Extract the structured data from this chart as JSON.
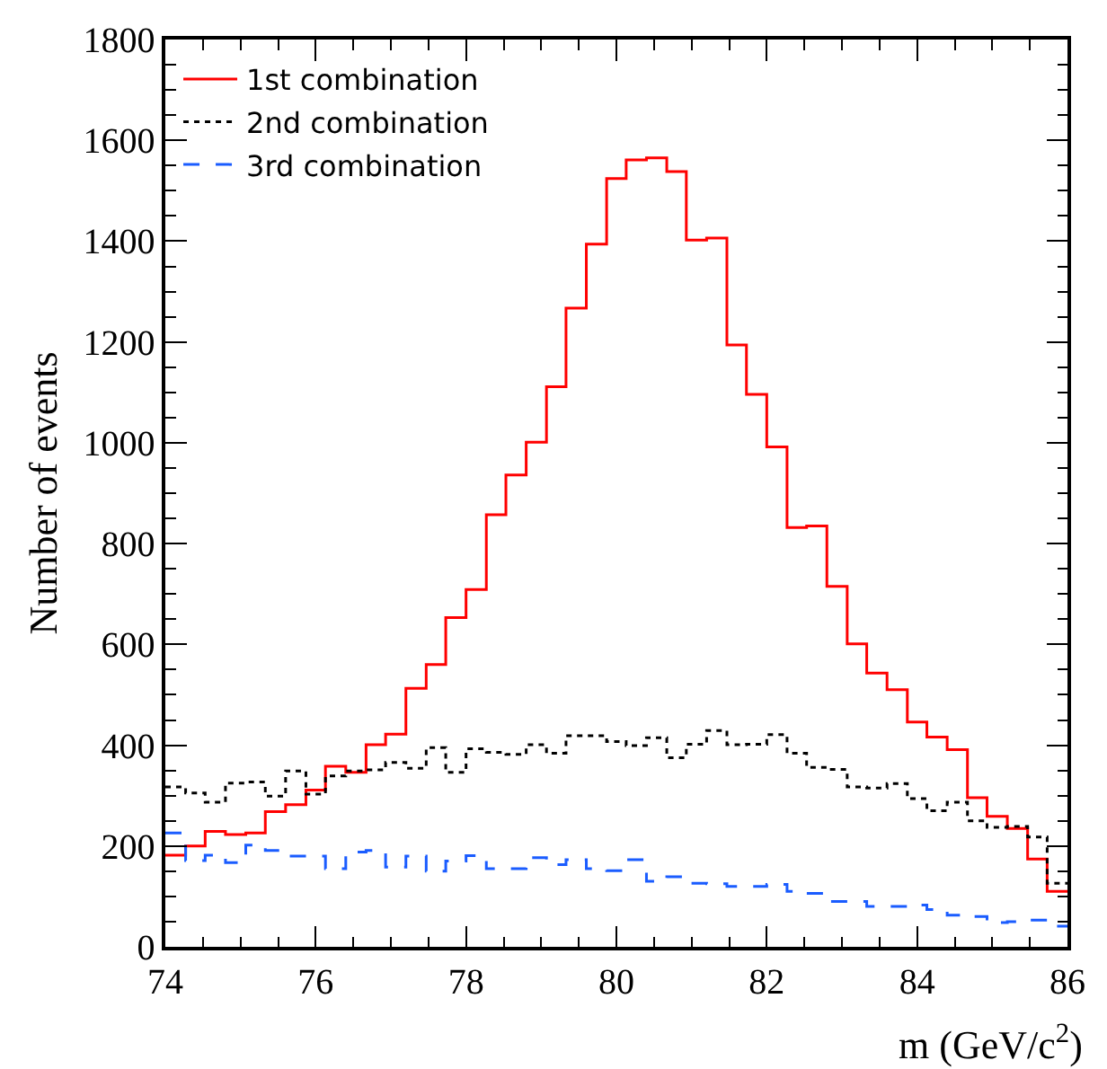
{
  "chart_data": {
    "type": "histogram",
    "xlabel": "m (GeV/c$^{2}$)",
    "ylabel": "Number of events",
    "bins": [
      74,
      74.27,
      74.53,
      74.8,
      75.07,
      75.33,
      75.6,
      75.87,
      76.13,
      76.4,
      76.67,
      76.93,
      77.2,
      77.47,
      77.73,
      78,
      78.27,
      78.53,
      78.8,
      79.07,
      79.33,
      79.6,
      79.87,
      80.13,
      80.4,
      80.67,
      80.93,
      81.2,
      81.47,
      81.73,
      82,
      82.27,
      82.53,
      82.8,
      83.07,
      83.33,
      83.6,
      83.87,
      84.13,
      84.4,
      84.67,
      84.93,
      85.2,
      85.47,
      85.73,
      86
    ],
    "series": [
      {
        "name": "1st combination",
        "color": "#ff0000",
        "line_style": "solid",
        "values": [
          182,
          200,
          229,
          223,
          226,
          268,
          282,
          311,
          358,
          346,
          401,
          422,
          513,
          560,
          653,
          709,
          857,
          936,
          1001,
          1111,
          1267,
          1394,
          1524,
          1561,
          1565,
          1538,
          1402,
          1406,
          1194,
          1096,
          992,
          832,
          835,
          715,
          601,
          543,
          510,
          446,
          416,
          391,
          296,
          259,
          235,
          174,
          110
        ]
      },
      {
        "name": "2nd combination",
        "color": "#000000",
        "line_style": "dotted",
        "values": [
          317,
          305,
          287,
          325,
          327,
          299,
          349,
          303,
          339,
          349,
          351,
          366,
          354,
          395,
          346,
          393,
          386,
          382,
          401,
          384,
          419,
          419,
          407,
          399,
          415,
          375,
          402,
          429,
          401,
          402,
          421,
          384,
          356,
          352,
          317,
          315,
          324,
          294,
          270,
          287,
          250,
          237,
          239,
          218,
          126
        ]
      },
      {
        "name": "3rd combination",
        "color": "#1a5cff",
        "line_style": "dashed",
        "values": [
          226,
          171,
          182,
          167,
          202,
          191,
          180,
          180,
          155,
          188,
          191,
          158,
          180,
          150,
          170,
          181,
          155,
          155,
          177,
          163,
          173,
          155,
          151,
          173,
          130,
          139,
          126,
          125,
          120,
          120,
          124,
          110,
          106,
          90,
          90,
          80,
          80,
          83,
          74,
          63,
          60,
          48,
          50,
          53,
          41
        ]
      }
    ],
    "xlim": [
      74,
      86
    ],
    "xticks": [
      74,
      76,
      78,
      80,
      82,
      84,
      86
    ],
    "ylim": [
      0,
      1800
    ],
    "yticks": [
      0,
      200,
      400,
      600,
      800,
      1000,
      1200,
      1400,
      1600,
      1800
    ],
    "legend": "top left"
  }
}
